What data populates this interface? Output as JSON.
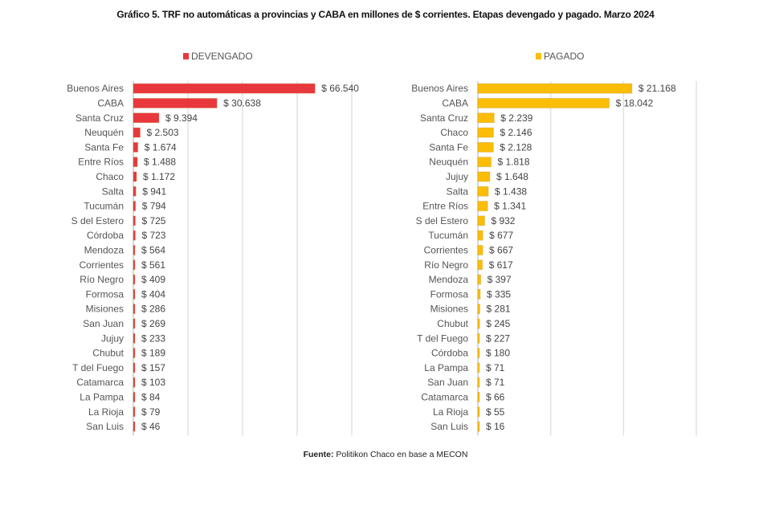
{
  "title": "Gráfico 5. TRF no automáticas a provincias y CABA en millones de $ corrientes. Etapas devengado y pagado. Marzo 2024",
  "source": {
    "label": "Fuente:",
    "text": "Politikon Chaco en base a MECON"
  },
  "chart_data": [
    {
      "type": "bar",
      "orientation": "horizontal",
      "series_name": "DEVENGADO",
      "color": "#e8383d",
      "value_prefix": "$ ",
      "xlim": [
        0,
        80000
      ],
      "grid_step": 20000,
      "grid": true,
      "legend": "top",
      "categories": [
        "Buenos Aires",
        "CABA",
        "Santa Cruz",
        "Neuquén",
        "Santa Fe",
        "Entre Ríos",
        "Chaco",
        "Salta",
        "Tucumán",
        "S del Estero",
        "Córdoba",
        "Mendoza",
        "Corrientes",
        "Río Negro",
        "Formosa",
        "Misiones",
        "San Juan",
        "Jujuy",
        "Chubut",
        "T del Fuego",
        "Catamarca",
        "La Pampa",
        "La Rioja",
        "San Luis"
      ],
      "values": [
        66540,
        30638,
        9394,
        2503,
        1674,
        1488,
        1172,
        941,
        794,
        725,
        723,
        564,
        561,
        409,
        404,
        286,
        269,
        233,
        189,
        157,
        103,
        84,
        79,
        46
      ],
      "labels": [
        "$ 66.540",
        "$ 30.638",
        "$ 9.394",
        "$ 2.503",
        "$ 1.674",
        "$ 1.488",
        "$ 1.172",
        "$ 941",
        "$ 794",
        "$ 725",
        "$ 723",
        "$ 564",
        "$ 561",
        "$ 409",
        "$ 404",
        "$ 286",
        "$ 269",
        "$ 233",
        "$ 189",
        "$ 157",
        "$ 103",
        "$ 84",
        "$ 79",
        "$ 46"
      ]
    },
    {
      "type": "bar",
      "orientation": "horizontal",
      "series_name": "PAGADO",
      "color": "#fbbd08",
      "value_prefix": "$ ",
      "xlim": [
        0,
        30000
      ],
      "grid_step": 10000,
      "grid": true,
      "legend": "top",
      "categories": [
        "Buenos Aires",
        "CABA",
        "Santa Cruz",
        "Chaco",
        "Santa Fe",
        "Neuquén",
        "Jujuy",
        "Salta",
        "Entre Ríos",
        "S del Estero",
        "Tucumán",
        "Corrientes",
        "Río Negro",
        "Mendoza",
        "Formosa",
        "Misiones",
        "Chubut",
        "T del Fuego",
        "Córdoba",
        "La Pampa",
        "San Juan",
        "Catamarca",
        "La Rioja",
        "San Luis"
      ],
      "values": [
        21168,
        18042,
        2239,
        2146,
        2128,
        1818,
        1648,
        1438,
        1341,
        932,
        677,
        667,
        617,
        397,
        335,
        281,
        245,
        227,
        180,
        71,
        71,
        66,
        55,
        16
      ],
      "labels": [
        "$ 21.168",
        "$ 18.042",
        "$ 2.239",
        "$ 2.146",
        "$ 2.128",
        "$ 1.818",
        "$ 1.648",
        "$ 1.438",
        "$ 1.341",
        "$ 932",
        "$ 677",
        "$ 667",
        "$ 617",
        "$ 397",
        "$ 335",
        "$ 281",
        "$ 245",
        "$ 227",
        "$ 180",
        "$ 71",
        "$ 71",
        "$ 66",
        "$ 55",
        "$ 16"
      ]
    }
  ]
}
